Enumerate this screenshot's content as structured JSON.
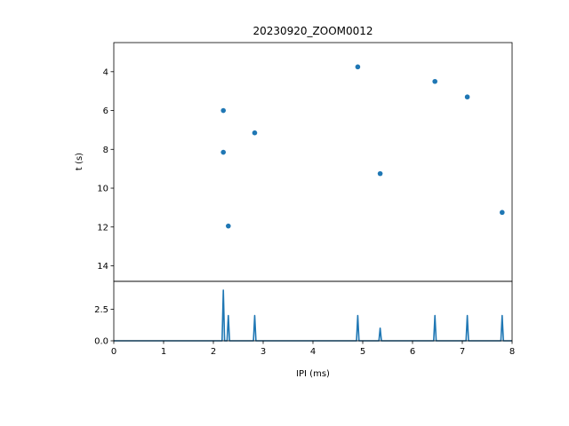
{
  "chart_data": [
    {
      "type": "scatter",
      "title": "20230920_ZOOM0012",
      "xlabel": "",
      "ylabel": "t (s)",
      "xlim": [
        0,
        8
      ],
      "ylim": [
        14.8,
        2.5
      ],
      "y_inverted": true,
      "yticks": [
        4,
        6,
        8,
        10,
        12,
        14
      ],
      "color": "#1f77b4",
      "points": [
        {
          "x": 2.2,
          "y": 6.0
        },
        {
          "x": 2.2,
          "y": 8.15
        },
        {
          "x": 2.3,
          "y": 11.95
        },
        {
          "x": 2.83,
          "y": 7.15
        },
        {
          "x": 4.9,
          "y": 3.75
        },
        {
          "x": 5.35,
          "y": 9.25
        },
        {
          "x": 6.45,
          "y": 4.5
        },
        {
          "x": 7.1,
          "y": 5.3
        },
        {
          "x": 7.8,
          "y": 11.25
        }
      ]
    },
    {
      "type": "line",
      "title": "",
      "xlabel": "IPI (ms)",
      "ylabel": "",
      "xlim": [
        0,
        8
      ],
      "ylim": [
        0,
        4.7
      ],
      "xticks": [
        0,
        1,
        2,
        3,
        4,
        5,
        6,
        7,
        8
      ],
      "yticks": [
        0.0,
        2.5
      ],
      "ytick_labels": [
        "0.0",
        "2.5"
      ],
      "color": "#1f77b4",
      "peaks": [
        {
          "x": 2.2,
          "y": 4.0
        },
        {
          "x": 2.3,
          "y": 2.0
        },
        {
          "x": 2.83,
          "y": 2.0
        },
        {
          "x": 4.9,
          "y": 2.0
        },
        {
          "x": 5.35,
          "y": 1.0
        },
        {
          "x": 6.45,
          "y": 2.0
        },
        {
          "x": 7.1,
          "y": 2.0
        },
        {
          "x": 7.8,
          "y": 2.0
        }
      ]
    }
  ]
}
